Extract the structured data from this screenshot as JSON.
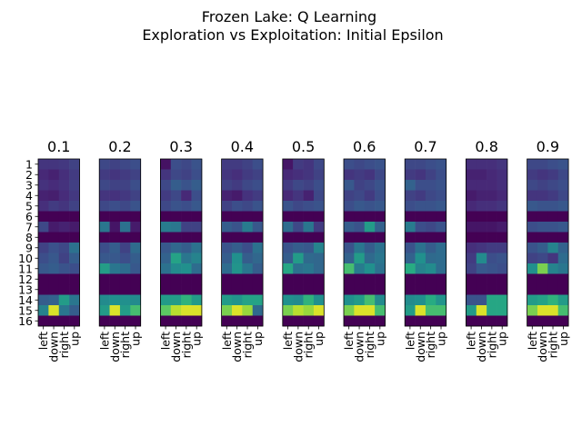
{
  "suptitle": [
    "Frozen Lake: Q Learning",
    "Exploration vs Exploitation: Initial Epsilon"
  ],
  "colormap": "viridis",
  "chart_data": {
    "type": "heatmap",
    "title": "Frozen Lake: Q Learning\nExploration vs Exploitation: Initial Epsilon",
    "facet": "Initial Epsilon",
    "panel_titles": [
      "0.1",
      "0.2",
      "0.3",
      "0.4",
      "0.5",
      "0.6",
      "0.7",
      "0.8",
      "0.9"
    ],
    "rows": [
      "1",
      "2",
      "3",
      "4",
      "5",
      "6",
      "7",
      "8",
      "9",
      "10",
      "11",
      "12",
      "13",
      "14",
      "15",
      "16"
    ],
    "columns": [
      "left",
      "down",
      "right",
      "up"
    ],
    "value_range": [
      0,
      1
    ],
    "panels": [
      {
        "epsilon": "0.1",
        "values": [
          [
            0.16,
            0.16,
            0.17,
            0.2
          ],
          [
            0.12,
            0.1,
            0.14,
            0.18
          ],
          [
            0.15,
            0.13,
            0.15,
            0.19
          ],
          [
            0.1,
            0.09,
            0.13,
            0.17
          ],
          [
            0.14,
            0.18,
            0.16,
            0.2
          ],
          [
            0.0,
            0.0,
            0.0,
            0.0
          ],
          [
            0.22,
            0.08,
            0.1,
            0.08
          ],
          [
            0.0,
            0.0,
            0.0,
            0.0
          ],
          [
            0.2,
            0.25,
            0.22,
            0.38
          ],
          [
            0.24,
            0.28,
            0.2,
            0.3
          ],
          [
            0.28,
            0.3,
            0.26,
            0.24
          ],
          [
            0.0,
            0.0,
            0.0,
            0.0
          ],
          [
            0.0,
            0.0,
            0.0,
            0.0
          ],
          [
            0.3,
            0.32,
            0.55,
            0.4
          ],
          [
            0.45,
            0.95,
            0.4,
            0.3
          ],
          [
            0.0,
            0.0,
            0.0,
            0.0
          ]
        ]
      },
      {
        "epsilon": "0.2",
        "values": [
          [
            0.22,
            0.2,
            0.22,
            0.24
          ],
          [
            0.18,
            0.16,
            0.18,
            0.2
          ],
          [
            0.22,
            0.2,
            0.2,
            0.24
          ],
          [
            0.16,
            0.15,
            0.17,
            0.2
          ],
          [
            0.22,
            0.24,
            0.22,
            0.26
          ],
          [
            0.0,
            0.0,
            0.0,
            0.0
          ],
          [
            0.4,
            0.06,
            0.38,
            0.08
          ],
          [
            0.0,
            0.0,
            0.0,
            0.0
          ],
          [
            0.24,
            0.3,
            0.2,
            0.35
          ],
          [
            0.28,
            0.28,
            0.24,
            0.3
          ],
          [
            0.56,
            0.4,
            0.36,
            0.28
          ],
          [
            0.0,
            0.0,
            0.0,
            0.0
          ],
          [
            0.0,
            0.0,
            0.0,
            0.0
          ],
          [
            0.48,
            0.5,
            0.5,
            0.48
          ],
          [
            0.55,
            0.95,
            0.55,
            0.7
          ],
          [
            0.0,
            0.0,
            0.0,
            0.0
          ]
        ]
      },
      {
        "epsilon": "0.3",
        "values": [
          [
            0.05,
            0.24,
            0.22,
            0.26
          ],
          [
            0.16,
            0.22,
            0.2,
            0.24
          ],
          [
            0.22,
            0.3,
            0.26,
            0.3
          ],
          [
            0.18,
            0.22,
            0.12,
            0.24
          ],
          [
            0.22,
            0.26,
            0.24,
            0.28
          ],
          [
            0.0,
            0.0,
            0.0,
            0.0
          ],
          [
            0.42,
            0.4,
            0.2,
            0.2
          ],
          [
            0.0,
            0.0,
            0.0,
            0.0
          ],
          [
            0.28,
            0.34,
            0.3,
            0.38
          ],
          [
            0.32,
            0.58,
            0.4,
            0.45
          ],
          [
            0.38,
            0.48,
            0.5,
            0.36
          ],
          [
            0.0,
            0.0,
            0.0,
            0.0
          ],
          [
            0.0,
            0.0,
            0.0,
            0.0
          ],
          [
            0.55,
            0.55,
            0.65,
            0.55
          ],
          [
            0.75,
            0.9,
            0.95,
            0.95
          ],
          [
            0.0,
            0.0,
            0.0,
            0.0
          ]
        ]
      },
      {
        "epsilon": "0.4",
        "values": [
          [
            0.18,
            0.18,
            0.2,
            0.24
          ],
          [
            0.16,
            0.14,
            0.18,
            0.2
          ],
          [
            0.2,
            0.18,
            0.22,
            0.24
          ],
          [
            0.1,
            0.08,
            0.15,
            0.18
          ],
          [
            0.2,
            0.24,
            0.22,
            0.26
          ],
          [
            0.0,
            0.0,
            0.0,
            0.0
          ],
          [
            0.3,
            0.26,
            0.42,
            0.28
          ],
          [
            0.0,
            0.0,
            0.0,
            0.0
          ],
          [
            0.26,
            0.3,
            0.24,
            0.38
          ],
          [
            0.3,
            0.5,
            0.3,
            0.34
          ],
          [
            0.36,
            0.52,
            0.4,
            0.3
          ],
          [
            0.0,
            0.0,
            0.0,
            0.0
          ],
          [
            0.0,
            0.0,
            0.0,
            0.0
          ],
          [
            0.55,
            0.52,
            0.58,
            0.58
          ],
          [
            0.8,
            0.95,
            0.85,
            0.35
          ],
          [
            0.0,
            0.0,
            0.0,
            0.0
          ]
        ]
      },
      {
        "epsilon": "0.5",
        "values": [
          [
            0.06,
            0.18,
            0.16,
            0.22
          ],
          [
            0.12,
            0.14,
            0.16,
            0.2
          ],
          [
            0.18,
            0.22,
            0.2,
            0.24
          ],
          [
            0.12,
            0.16,
            0.1,
            0.22
          ],
          [
            0.26,
            0.22,
            0.24,
            0.26
          ],
          [
            0.0,
            0.0,
            0.0,
            0.0
          ],
          [
            0.36,
            0.22,
            0.4,
            0.18
          ],
          [
            0.0,
            0.0,
            0.0,
            0.0
          ],
          [
            0.26,
            0.3,
            0.28,
            0.45
          ],
          [
            0.3,
            0.55,
            0.35,
            0.34
          ],
          [
            0.6,
            0.38,
            0.4,
            0.34
          ],
          [
            0.0,
            0.0,
            0.0,
            0.0
          ],
          [
            0.0,
            0.0,
            0.0,
            0.0
          ],
          [
            0.5,
            0.48,
            0.65,
            0.5
          ],
          [
            0.8,
            0.9,
            0.85,
            0.95
          ],
          [
            0.0,
            0.0,
            0.0,
            0.0
          ]
        ]
      },
      {
        "epsilon": "0.6",
        "values": [
          [
            0.24,
            0.22,
            0.24,
            0.26
          ],
          [
            0.16,
            0.18,
            0.16,
            0.22
          ],
          [
            0.28,
            0.2,
            0.22,
            0.26
          ],
          [
            0.2,
            0.22,
            0.18,
            0.24
          ],
          [
            0.24,
            0.28,
            0.26,
            0.28
          ],
          [
            0.0,
            0.0,
            0.0,
            0.0
          ],
          [
            0.3,
            0.26,
            0.55,
            0.32
          ],
          [
            0.0,
            0.0,
            0.0,
            0.0
          ],
          [
            0.26,
            0.4,
            0.3,
            0.38
          ],
          [
            0.32,
            0.55,
            0.35,
            0.4
          ],
          [
            0.7,
            0.42,
            0.5,
            0.38
          ],
          [
            0.0,
            0.0,
            0.0,
            0.0
          ],
          [
            0.0,
            0.0,
            0.0,
            0.0
          ],
          [
            0.5,
            0.55,
            0.7,
            0.48
          ],
          [
            0.8,
            0.95,
            0.95,
            0.7
          ],
          [
            0.0,
            0.0,
            0.0,
            0.0
          ]
        ]
      },
      {
        "epsilon": "0.7",
        "values": [
          [
            0.22,
            0.22,
            0.24,
            0.26
          ],
          [
            0.18,
            0.16,
            0.2,
            0.24
          ],
          [
            0.32,
            0.24,
            0.24,
            0.26
          ],
          [
            0.2,
            0.18,
            0.22,
            0.24
          ],
          [
            0.24,
            0.26,
            0.26,
            0.28
          ],
          [
            0.0,
            0.0,
            0.0,
            0.0
          ],
          [
            0.42,
            0.24,
            0.22,
            0.26
          ],
          [
            0.0,
            0.0,
            0.0,
            0.0
          ],
          [
            0.26,
            0.38,
            0.3,
            0.36
          ],
          [
            0.32,
            0.5,
            0.35,
            0.36
          ],
          [
            0.62,
            0.45,
            0.48,
            0.36
          ],
          [
            0.0,
            0.0,
            0.0,
            0.0
          ],
          [
            0.0,
            0.0,
            0.0,
            0.0
          ],
          [
            0.48,
            0.5,
            0.62,
            0.52
          ],
          [
            0.55,
            0.95,
            0.7,
            0.7
          ],
          [
            0.0,
            0.0,
            0.0,
            0.0
          ]
        ]
      },
      {
        "epsilon": "0.8",
        "values": [
          [
            0.14,
            0.14,
            0.14,
            0.16
          ],
          [
            0.1,
            0.1,
            0.12,
            0.14
          ],
          [
            0.12,
            0.12,
            0.12,
            0.14
          ],
          [
            0.08,
            0.1,
            0.1,
            0.12
          ],
          [
            0.12,
            0.14,
            0.14,
            0.16
          ],
          [
            0.0,
            0.0,
            0.0,
            0.0
          ],
          [
            0.06,
            0.06,
            0.06,
            0.08
          ],
          [
            0.0,
            0.0,
            0.0,
            0.0
          ],
          [
            0.14,
            0.16,
            0.18,
            0.18
          ],
          [
            0.18,
            0.48,
            0.24,
            0.26
          ],
          [
            0.2,
            0.28,
            0.26,
            0.24
          ],
          [
            0.0,
            0.0,
            0.0,
            0.0
          ],
          [
            0.0,
            0.0,
            0.0,
            0.0
          ],
          [
            0.26,
            0.26,
            0.6,
            0.6
          ],
          [
            0.55,
            0.95,
            0.6,
            0.6
          ],
          [
            0.0,
            0.0,
            0.0,
            0.0
          ]
        ]
      },
      {
        "epsilon": "0.9",
        "values": [
          [
            0.22,
            0.22,
            0.24,
            0.26
          ],
          [
            0.18,
            0.16,
            0.18,
            0.22
          ],
          [
            0.22,
            0.2,
            0.22,
            0.24
          ],
          [
            0.16,
            0.16,
            0.18,
            0.22
          ],
          [
            0.28,
            0.26,
            0.26,
            0.28
          ],
          [
            0.0,
            0.0,
            0.0,
            0.0
          ],
          [
            0.24,
            0.26,
            0.26,
            0.28
          ],
          [
            0.0,
            0.0,
            0.0,
            0.0
          ],
          [
            0.26,
            0.3,
            0.45,
            0.32
          ],
          [
            0.2,
            0.22,
            0.16,
            0.36
          ],
          [
            0.5,
            0.8,
            0.45,
            0.4
          ],
          [
            0.0,
            0.0,
            0.0,
            0.0
          ],
          [
            0.0,
            0.0,
            0.0,
            0.0
          ],
          [
            0.55,
            0.58,
            0.65,
            0.55
          ],
          [
            0.8,
            0.95,
            0.95,
            0.7
          ],
          [
            0.0,
            0.0,
            0.0,
            0.0
          ]
        ]
      }
    ]
  }
}
